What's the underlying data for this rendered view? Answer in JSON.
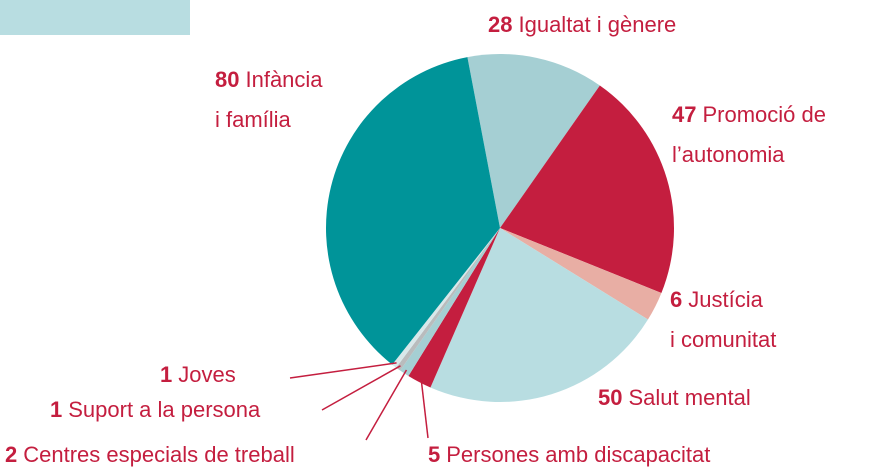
{
  "chart_data": {
    "type": "pie",
    "categories": [
      [
        "Igualtat i gènere"
      ],
      [
        "Promoció de",
        "l’autonomia"
      ],
      [
        "Justícia",
        "i comunitat"
      ],
      [
        "Salut mental"
      ],
      [
        "Persones amb discapacitat"
      ],
      [
        "Centres especials de treball"
      ],
      [
        "Suport a la persona"
      ],
      [
        "Joves"
      ],
      [
        "Infància",
        "i família"
      ]
    ],
    "values": [
      28,
      47,
      6,
      50,
      5,
      2,
      1,
      1,
      80
    ],
    "colors": [
      "#a5cfd3",
      "#c41e3f",
      "#e8aea4",
      "#b8dde1",
      "#c41e3f",
      "#a5cfd3",
      "#b9bcbd",
      "#d8e8ea",
      "#009499"
    ],
    "label_color": "#c41e3f"
  }
}
